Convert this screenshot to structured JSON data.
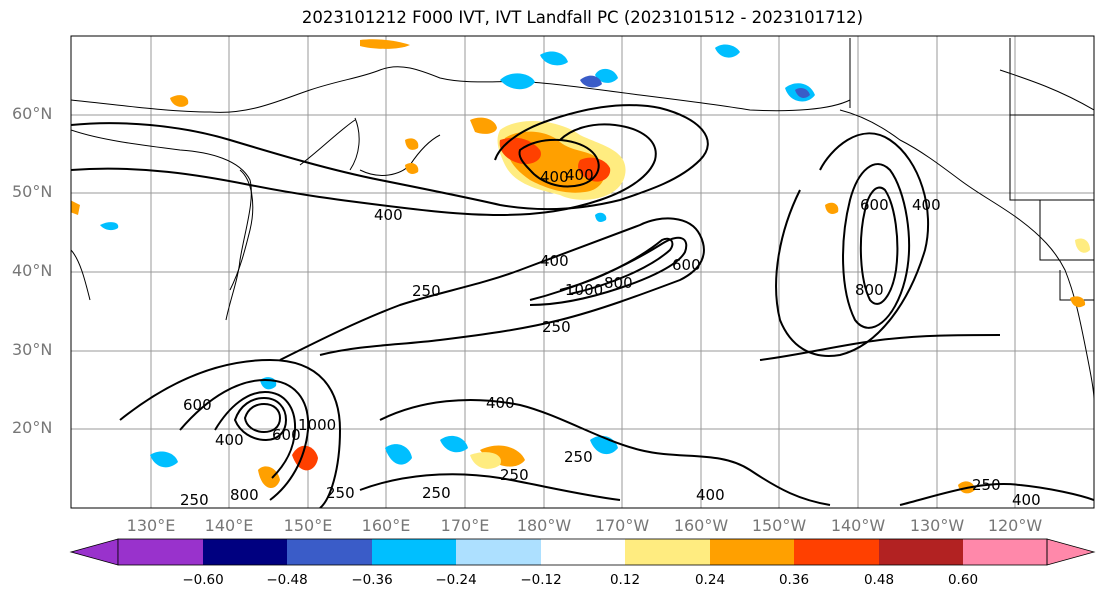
{
  "figure": {
    "title": "2023101212 F000 IVT, IVT Landfall PC (2023101512 - 2023101712)"
  },
  "axes": {
    "lat_labels": [
      "60°N",
      "50°N",
      "40°N",
      "30°N",
      "20°N"
    ],
    "lon_labels": [
      "130°E",
      "140°E",
      "150°E",
      "160°E",
      "170°E",
      "180°W",
      "170°W",
      "160°W",
      "150°W",
      "140°W",
      "130°W",
      "120°W"
    ]
  },
  "contour_labels": [
    "400",
    "400",
    "400",
    "400",
    "250",
    "1000",
    "800",
    "600",
    "250",
    "600",
    "400",
    "800",
    "600",
    "400",
    "600",
    "800",
    "1000",
    "250",
    "250",
    "400",
    "250",
    "250",
    "250",
    "400",
    "250",
    "400"
  ],
  "colorbar": {
    "colors": [
      "#9932CC",
      "#000080",
      "#3A5CC8",
      "#00BFFF",
      "#ADE0FF",
      "#FFFFFF",
      "#FFEC80",
      "#FFA000",
      "#FF4000",
      "#B22222",
      "#FF88AA"
    ],
    "ticks": [
      "−0.60",
      "−0.48",
      "−0.36",
      "−0.24",
      "−0.12",
      "0.12",
      "0.24",
      "0.36",
      "0.48",
      "0.60"
    ]
  }
}
